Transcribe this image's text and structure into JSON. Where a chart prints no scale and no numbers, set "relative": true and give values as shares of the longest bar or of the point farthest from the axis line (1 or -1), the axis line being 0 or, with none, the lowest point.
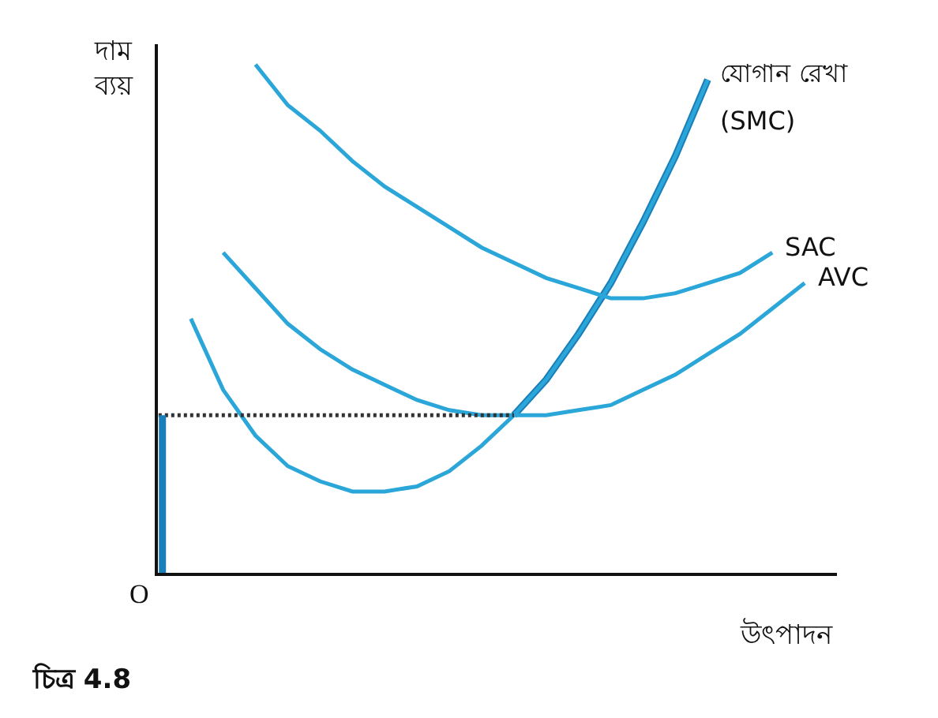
{
  "chart_data": {
    "type": "line",
    "relative": true,
    "ylabel": "দাম\nব্যয়",
    "xlabel": "উৎপাদন",
    "legend": false,
    "grid": false,
    "marker": "none",
    "annotations": [
      "O",
      "চিত্র 4.8"
    ],
    "categories": [
      null,
      null,
      null,
      null,
      null,
      null,
      null,
      null,
      null,
      null,
      null,
      null,
      null,
      null,
      null,
      null,
      null,
      null,
      null,
      null,
      null
    ],
    "series": [
      {
        "type": "line",
        "line_style": "dotted",
        "color": "#333333",
        "values": [
          0.31,
          0.31,
          0.31,
          0.31,
          0.31,
          0.31,
          0.31,
          0.31,
          0.31,
          0.31,
          0.31,
          0.31,
          null,
          null,
          null,
          null,
          null,
          null,
          null,
          null,
          null
        ]
      },
      {
        "name": "যোগান রেখা",
        "color": "#1a7fb8",
        "values": [
          null,
          null,
          null,
          null,
          null,
          null,
          null,
          null,
          null,
          null,
          null,
          0.31,
          0.38,
          0.47,
          0.57,
          0.69,
          0.82,
          0.97,
          null,
          null,
          null
        ]
      },
      {
        "name": "(SMC)",
        "color": "#2ba6d9",
        "values": [
          null,
          0.5,
          0.36,
          0.27,
          0.21,
          0.18,
          0.16,
          0.16,
          0.17,
          0.2,
          0.25,
          0.31,
          0.38,
          0.47,
          0.57,
          0.69,
          0.82,
          0.97,
          null,
          null,
          null
        ]
      },
      {
        "name": "SAC",
        "color": "#2ba6d9",
        "values": [
          null,
          null,
          null,
          1,
          0.92,
          0.87,
          0.81,
          0.76,
          0.72,
          0.68,
          0.64,
          0.61,
          0.58,
          0.56,
          0.54,
          0.54,
          0.55,
          0.57,
          0.59,
          0.63,
          null
        ]
      },
      {
        "name": "AVC",
        "color": "#2ba6d9",
        "values": [
          null,
          null,
          0.63,
          0.56,
          0.49,
          0.44,
          0.4,
          0.37,
          0.34,
          0.32,
          0.31,
          0.31,
          0.31,
          0.32,
          0.33,
          0.36,
          0.39,
          0.43,
          0.47,
          0.52,
          0.57
        ]
      }
    ]
  }
}
